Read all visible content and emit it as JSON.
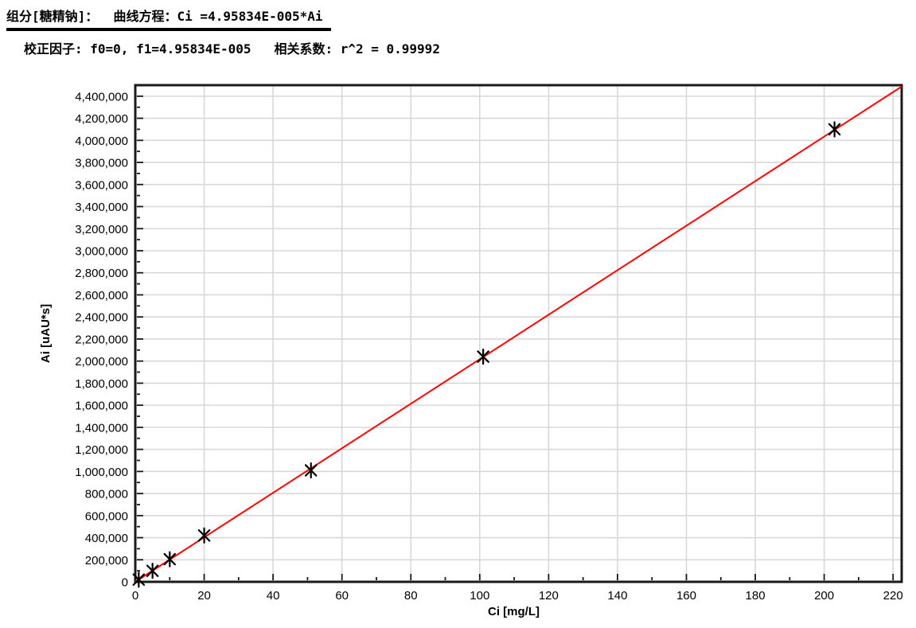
{
  "header": {
    "line1": "组分[糖精钠]：  曲线方程：Ci =4.95834E-005*Ai",
    "line2": "校正因子: f0=0, f1=4.95834E-005   相关系数: r^2 = 0.99992",
    "component": "糖精钠",
    "equation": "Ci =4.95834E-005*Ai",
    "f0": "0",
    "f1": "4.95834E-005",
    "r_squared": "0.99992"
  },
  "chart_data": {
    "type": "scatter",
    "title": "",
    "xlabel": "Ci [mg/L]",
    "ylabel": "Ai [uAU*s]",
    "xlim": [
      0,
      222.5
    ],
    "ylim": [
      0,
      4500000
    ],
    "x_ticks": {
      "start": 0,
      "step": 20,
      "end": 220
    },
    "y_ticks": {
      "start": 0,
      "step": 200000,
      "end": 4400000
    },
    "x_minor_step": 10,
    "y_minor_step": 100000,
    "grid": true,
    "legend": "none",
    "points": {
      "x": [
        1,
        5,
        10,
        20,
        51,
        101,
        203
      ],
      "y": [
        20000,
        100000,
        205000,
        420000,
        1010000,
        2040000,
        4100000
      ]
    },
    "fit_line": {
      "equation": "Ci =4.95834E-005*Ai",
      "slope_ai_per_mgL": 20168.5,
      "intercept": 0,
      "r_squared": 0.99992,
      "color": "#ff0000"
    },
    "marker": {
      "shape": "asterisk",
      "color": "#000000",
      "size": 9
    },
    "colors": {
      "grid": "#d8d8d8",
      "axis": "#1a1a1a",
      "tick_label": "#000000"
    }
  }
}
